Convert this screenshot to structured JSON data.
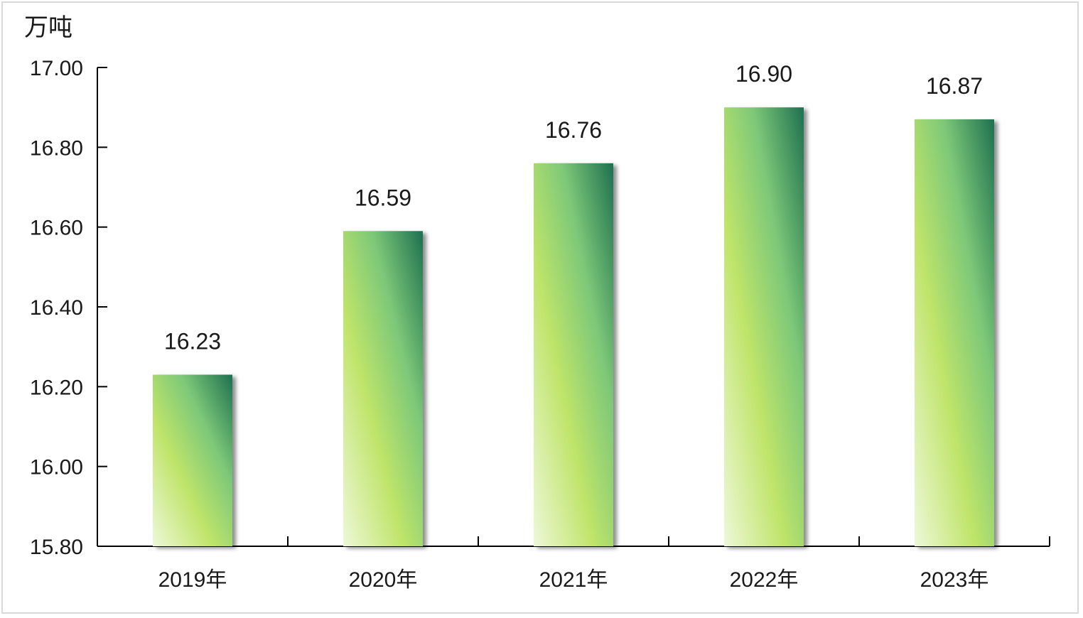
{
  "chart_data": {
    "type": "bar",
    "unit": "万吨",
    "categories": [
      "2019年",
      "2020年",
      "2021年",
      "2022年",
      "2023年"
    ],
    "values": [
      16.23,
      16.59,
      16.76,
      16.9,
      16.87
    ],
    "data_labels": [
      "16.23",
      "16.59",
      "16.76",
      "16.90",
      "16.87"
    ],
    "ylim": [
      15.8,
      17.0
    ],
    "y_ticks": [
      15.8,
      16.0,
      16.2,
      16.4,
      16.6,
      16.8,
      17.0
    ],
    "y_tick_labels": [
      "15.80",
      "16.00",
      "16.20",
      "16.40",
      "16.60",
      "16.80",
      "17.00"
    ],
    "grid": false,
    "legend": "none",
    "colors": {
      "bar_dark": "#1e7050",
      "bar_mid": "#7dc878",
      "bar_yellow": "#bfe46a",
      "bar_light": "#eef8d8",
      "axis": "#000000",
      "frame": "#d9d9d9"
    }
  }
}
